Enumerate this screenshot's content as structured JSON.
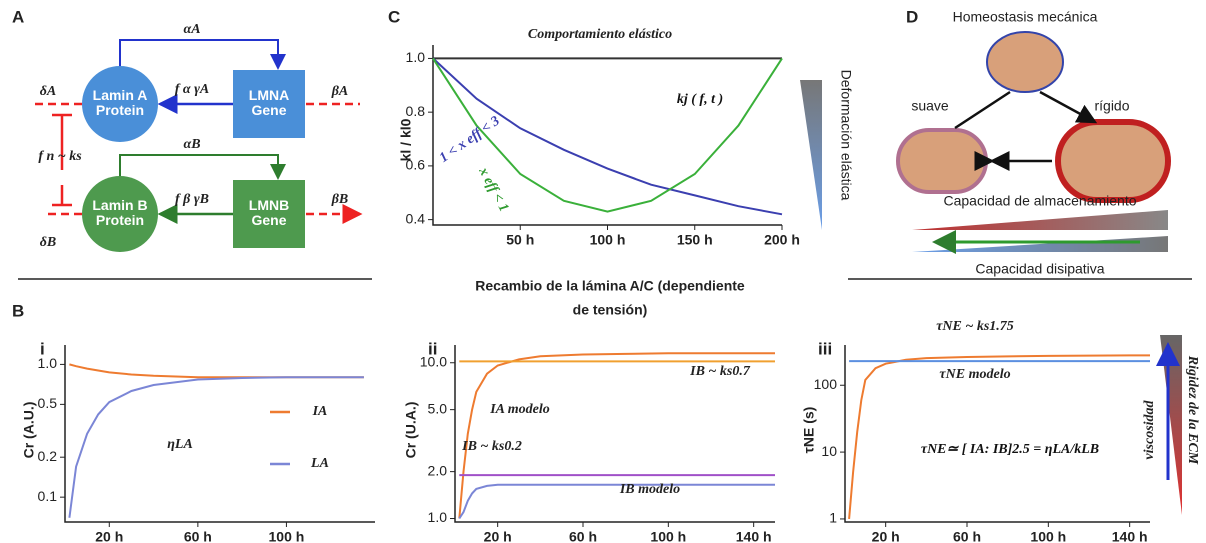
{
  "panel_labels": [
    "A",
    "B",
    "C",
    "D"
  ],
  "section_title": [
    "Recambio de la lámina A/C (dependiente",
    "de tensión)"
  ],
  "diagram_a": {
    "nodes": [
      "Lamin A Protein",
      "LMNA Gene",
      "Lamin B Protein",
      "LMNB Gene"
    ],
    "labels": [
      "αA",
      "f α γA",
      "δA",
      "βA",
      "f n ~ ks",
      "αB",
      "f β γB",
      "δB",
      "βB"
    ]
  },
  "diagram_d": {
    "title": "Homeostasis mecánica",
    "left": "suave",
    "right": "rígido",
    "storage": "Capacidad de almacenamiento",
    "dissipative": "Capacidad disipativa"
  },
  "chart_data": [
    {
      "type": "line",
      "panel": "C",
      "ylabel": "kl / kl0",
      "side_label": "Deformación elástica",
      "annotations": [
        "1 < x eff < 3",
        "x eff < 1",
        "kj ( f, t )"
      ],
      "x": [
        0,
        25,
        50,
        75,
        100,
        125,
        150,
        175,
        200
      ],
      "xlim": [
        0,
        200
      ],
      "ylim": [
        0.38,
        1.05
      ],
      "xticks": [
        {
          "value": 50,
          "label": "50 h"
        },
        {
          "value": 100,
          "label": "100 h"
        },
        {
          "value": 150,
          "label": "150 h"
        },
        {
          "value": 200,
          "label": "200 h"
        }
      ],
      "yticks": [
        0.4,
        0.6,
        0.8,
        {
          "value": 1,
          "label": "1.0"
        }
      ],
      "series": [
        {
          "name": "Comportamiento elástico",
          "color": "#333333",
          "values": [
            1,
            1,
            1,
            1,
            1,
            1,
            1,
            1,
            1
          ]
        },
        {
          "name": "1 < x eff < 3",
          "color": "#3b3fb0",
          "values": [
            1,
            0.85,
            0.74,
            0.66,
            0.59,
            0.53,
            0.49,
            0.45,
            0.42
          ]
        },
        {
          "name": "x eff < 1",
          "color": "#3ab03a",
          "values": [
            1,
            0.75,
            0.57,
            0.47,
            0.43,
            0.47,
            0.57,
            0.75,
            1
          ]
        }
      ]
    },
    {
      "type": "line",
      "panel": "i",
      "log": true,
      "ylabel": "Cr (A.U.)",
      "annotations": [
        "ηLA"
      ],
      "x": [
        2,
        5,
        10,
        15,
        20,
        30,
        40,
        60,
        80,
        100,
        120,
        135
      ],
      "xlim": [
        0,
        140
      ],
      "ylim": [
        0.065,
        1.4
      ],
      "xticks": [
        {
          "value": 20,
          "label": "20 h"
        },
        {
          "value": 60,
          "label": "60 h"
        },
        {
          "value": 100,
          "label": "100 h"
        }
      ],
      "yticks": [
        0.1,
        0.2,
        0.5,
        {
          "value": 1,
          "label": "1.0"
        }
      ],
      "series": [
        {
          "name": "IA",
          "color": "#ee7b30",
          "values": [
            1,
            0.97,
            0.93,
            0.9,
            0.87,
            0.84,
            0.82,
            0.8,
            0.8,
            0.8,
            0.8,
            0.8
          ]
        },
        {
          "name": "LA",
          "color": "#7b86d6",
          "values": [
            0.07,
            0.17,
            0.3,
            0.42,
            0.52,
            0.63,
            0.7,
            0.77,
            0.79,
            0.8,
            0.8,
            0.8
          ]
        }
      ]
    },
    {
      "type": "line",
      "panel": "ii",
      "log": true,
      "ylabel": "Cr (U.A.)",
      "x": [
        2,
        4,
        6,
        8,
        10,
        15,
        20,
        30,
        40,
        60,
        80,
        100,
        140,
        150
      ],
      "xlim": [
        0,
        150
      ],
      "ylim": [
        0.95,
        13
      ],
      "xticks": [
        {
          "value": 20,
          "label": "20 h"
        },
        {
          "value": 60,
          "label": "60 h"
        },
        {
          "value": 100,
          "label": "100 h"
        },
        {
          "value": 140,
          "label": "140 h"
        }
      ],
      "yticks": [
        {
          "value": 1,
          "label": "1.0"
        },
        {
          "value": 2,
          "label": "2.0"
        },
        {
          "value": 5,
          "label": "5.0"
        },
        {
          "value": 10,
          "label": "10.0"
        }
      ],
      "series": [
        {
          "name": "IA modelo",
          "color": "#ee7b30",
          "values": [
            1,
            2,
            3.5,
            5,
            6.5,
            8.5,
            9.6,
            10.5,
            11,
            11.3,
            11.4,
            11.5,
            11.5,
            11.5
          ]
        },
        {
          "name": "IB ~ ks0.7",
          "color": "#f0a030",
          "values": [
            10.2,
            10.2,
            10.2,
            10.2,
            10.2,
            10.2,
            10.2,
            10.2,
            10.2,
            10.2,
            10.2,
            10.2,
            10.2,
            10.2
          ]
        },
        {
          "name": "IB ~ ks0.2",
          "color": "#a050c8",
          "values": [
            1.9,
            1.9,
            1.9,
            1.9,
            1.9,
            1.9,
            1.9,
            1.9,
            1.9,
            1.9,
            1.9,
            1.9,
            1.9,
            1.9
          ]
        },
        {
          "name": "IB modelo",
          "color": "#7b86d6",
          "values": [
            1,
            1.1,
            1.3,
            1.45,
            1.55,
            1.62,
            1.65,
            1.65,
            1.65,
            1.65,
            1.65,
            1.65,
            1.65,
            1.65
          ]
        }
      ]
    },
    {
      "type": "line",
      "panel": "iii",
      "log": true,
      "ylabel": "τNE (s)",
      "annotations": [
        "τNE≃ [ IA: IB]2.5 = ηLA/kLB",
        "viscosidad",
        "Rigidez de la ECM"
      ],
      "x": [
        2,
        4,
        6,
        8,
        10,
        15,
        20,
        30,
        40,
        60,
        80,
        100,
        140,
        150
      ],
      "xlim": [
        0,
        150
      ],
      "ylim": [
        0.9,
        400
      ],
      "xticks": [
        {
          "value": 20,
          "label": "20 h"
        },
        {
          "value": 60,
          "label": "60 h"
        },
        {
          "value": 100,
          "label": "100 h"
        },
        {
          "value": 140,
          "label": "140 h"
        }
      ],
      "yticks": [
        1,
        10,
        100
      ],
      "series": [
        {
          "name": "τNE modelo",
          "color": "#ee7b30",
          "values": [
            1,
            5,
            20,
            60,
            120,
            180,
            210,
            240,
            255,
            265,
            270,
            275,
            280,
            280
          ]
        },
        {
          "name": "τNE ~ ks1.75",
          "color": "#5b8fe0",
          "values": [
            230,
            230,
            230,
            230,
            230,
            230,
            230,
            230,
            230,
            230,
            230,
            230,
            230,
            230
          ]
        }
      ]
    }
  ]
}
